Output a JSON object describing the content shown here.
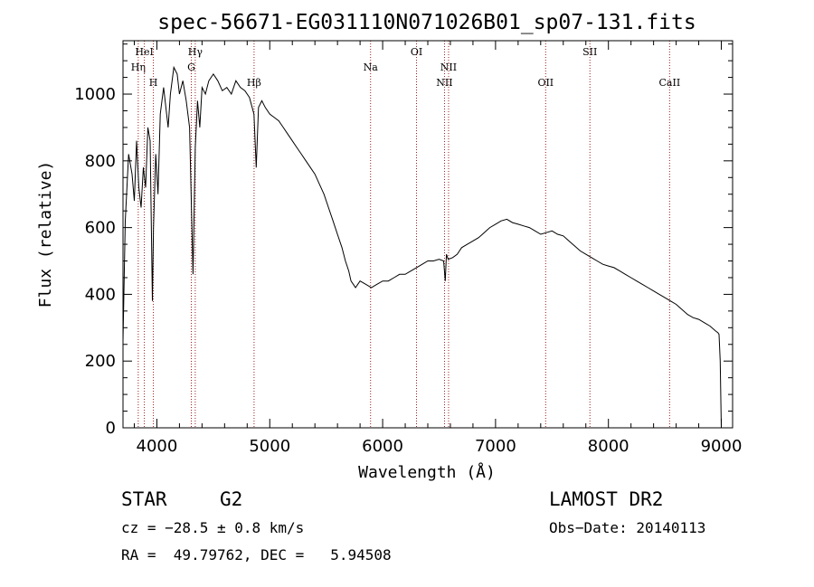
{
  "chart_data": {
    "type": "line",
    "title": "spec-56671-EG031110N071026B01_sp07-131.fits",
    "xlabel": "Wavelength (Å)",
    "ylabel": "Flux (relative)",
    "xlim": [
      3700,
      9100
    ],
    "ylim": [
      0,
      1160
    ],
    "xticks": [
      4000,
      5000,
      6000,
      7000,
      8000,
      9000
    ],
    "yticks": [
      0,
      200,
      400,
      600,
      800,
      1000
    ],
    "grid": false,
    "series": [
      {
        "x": [
          3700,
          3720,
          3750,
          3780,
          3800,
          3820,
          3840,
          3860,
          3880,
          3900,
          3920,
          3940,
          3960,
          3970,
          3990,
          4010,
          4030,
          4060,
          4080,
          4100,
          4120,
          4150,
          4180,
          4200,
          4230,
          4260,
          4290,
          4320,
          4340,
          4360,
          4380,
          4400,
          4430,
          4460,
          4500,
          4540,
          4580,
          4620,
          4660,
          4700,
          4740,
          4780,
          4820,
          4860,
          4880,
          4900,
          4930,
          4960,
          5000,
          5040,
          5080,
          5120,
          5160,
          5200,
          5240,
          5280,
          5320,
          5360,
          5400,
          5440,
          5480,
          5520,
          5560,
          5600,
          5640,
          5670,
          5700,
          5720,
          5740,
          5760,
          5780,
          5800,
          5850,
          5900,
          5950,
          6000,
          6050,
          6100,
          6150,
          6200,
          6250,
          6300,
          6350,
          6400,
          6450,
          6500,
          6540,
          6555,
          6565,
          6580,
          6620,
          6660,
          6700,
          6750,
          6800,
          6850,
          6900,
          6950,
          7000,
          7050,
          7100,
          7150,
          7200,
          7250,
          7300,
          7350,
          7400,
          7450,
          7500,
          7550,
          7600,
          7650,
          7700,
          7750,
          7800,
          7850,
          7900,
          7950,
          8000,
          8050,
          8100,
          8150,
          8200,
          8250,
          8300,
          8350,
          8400,
          8450,
          8500,
          8550,
          8600,
          8650,
          8700,
          8750,
          8800,
          8850,
          8900,
          8950,
          8970,
          8980,
          8990,
          9000
        ],
        "y": [
          260,
          620,
          820,
          760,
          680,
          860,
          720,
          660,
          780,
          720,
          900,
          860,
          380,
          600,
          820,
          700,
          940,
          1020,
          960,
          900,
          1000,
          1080,
          1060,
          1000,
          1040,
          980,
          900,
          460,
          840,
          980,
          900,
          1020,
          1000,
          1040,
          1060,
          1040,
          1010,
          1020,
          1000,
          1040,
          1020,
          1010,
          990,
          940,
          780,
          960,
          980,
          960,
          940,
          930,
          920,
          900,
          880,
          860,
          840,
          820,
          800,
          780,
          760,
          730,
          700,
          660,
          620,
          580,
          540,
          500,
          470,
          440,
          430,
          420,
          430,
          440,
          430,
          420,
          430,
          440,
          440,
          450,
          460,
          460,
          470,
          480,
          490,
          500,
          500,
          505,
          500,
          440,
          520,
          505,
          510,
          520,
          540,
          550,
          560,
          570,
          585,
          600,
          610,
          620,
          625,
          615,
          610,
          605,
          600,
          590,
          580,
          585,
          590,
          580,
          575,
          560,
          545,
          530,
          520,
          510,
          500,
          490,
          485,
          480,
          470,
          460,
          450,
          440,
          430,
          420,
          410,
          400,
          390,
          380,
          370,
          355,
          340,
          330,
          325,
          315,
          305,
          290,
          285,
          280,
          200,
          0
        ]
      }
    ],
    "line_marks": [
      {
        "wave": 3835,
        "label": "Hη",
        "tier": 2
      },
      {
        "wave": 3889,
        "label": "HeI",
        "tier": 1
      },
      {
        "wave": 3969,
        "label": "H",
        "tier": 3
      },
      {
        "wave": 4305,
        "label": "G",
        "tier": 2
      },
      {
        "wave": 4340,
        "label": "Hγ",
        "tier": 1
      },
      {
        "wave": 4861,
        "label": "Hβ",
        "tier": 3
      },
      {
        "wave": 5893,
        "label": "Na",
        "tier": 2
      },
      {
        "wave": 6300,
        "label": "OI",
        "tier": 1
      },
      {
        "wave": 6548,
        "label": "NII",
        "tier": 3
      },
      {
        "wave": 6584,
        "label": "NII",
        "tier": 2
      },
      {
        "wave": 7444,
        "label": "OII",
        "tier": 3
      },
      {
        "wave": 7836,
        "label": "SII",
        "tier": 1
      },
      {
        "wave": 8542,
        "label": "CaII",
        "tier": 3
      }
    ],
    "colors": {
      "spectrum": "#000000",
      "line_marks": "#9b1c1c"
    }
  },
  "info": {
    "object_class": "STAR",
    "subclass": "G2",
    "survey": "LAMOST DR2",
    "cz": "cz = −28.5 ± 0.8 km/s",
    "obs_date": "Obs−Date: 20140113",
    "coords": "RA =  49.79762, DEC =   5.94508"
  }
}
